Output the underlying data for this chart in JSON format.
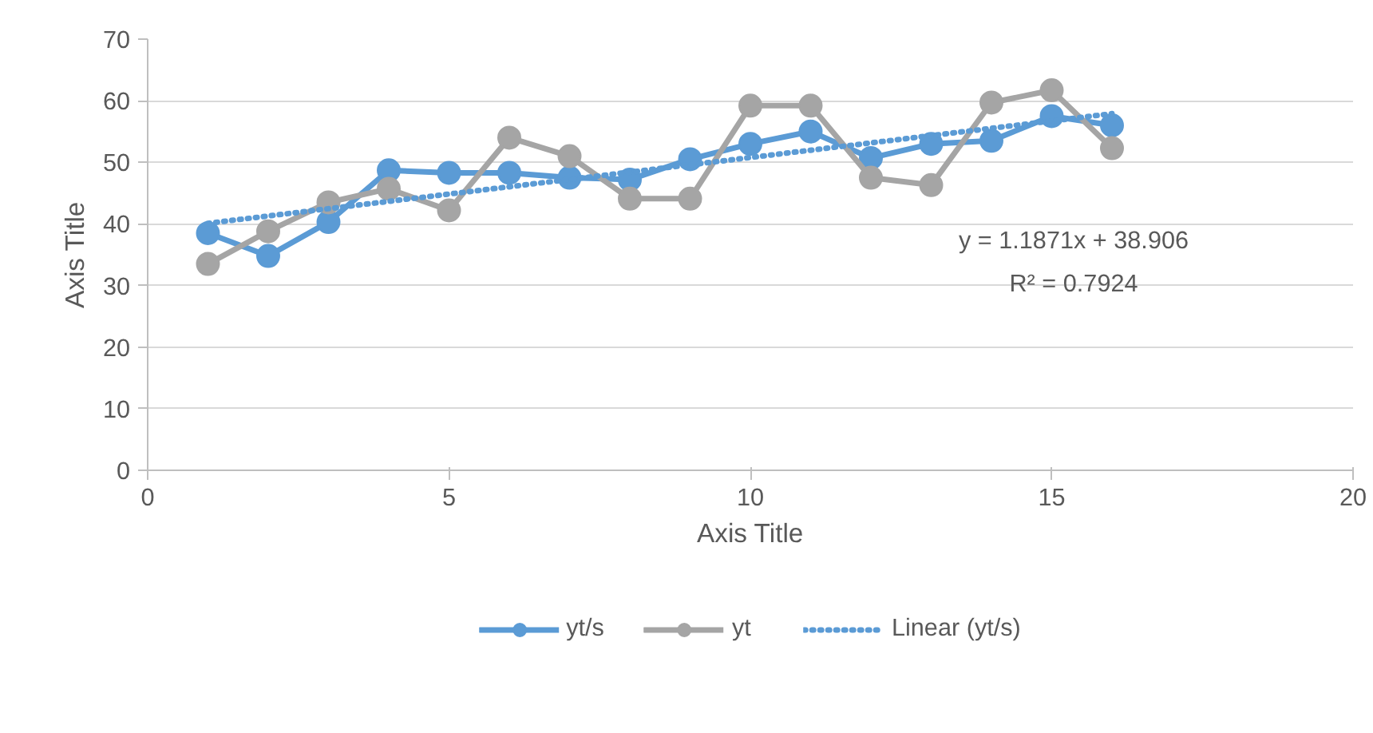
{
  "chart_data": {
    "type": "line",
    "xlabel": "Axis Title",
    "ylabel": "Axis Title",
    "x": [
      1,
      2,
      3,
      4,
      5,
      6,
      7,
      8,
      9,
      10,
      11,
      12,
      13,
      14,
      15,
      16
    ],
    "xlim": [
      0,
      20
    ],
    "xticks": [
      0,
      5,
      10,
      15,
      20
    ],
    "ylim": [
      0,
      70
    ],
    "yticks": [
      0,
      10,
      20,
      30,
      40,
      50,
      60,
      70
    ],
    "grid": "y",
    "legend": "bottom",
    "marker": "circle",
    "series": [
      {
        "name": "yt/s",
        "color": "#5b9bd5",
        "values": [
          38.5,
          34.8,
          40.3,
          48.7,
          48.3,
          48.3,
          47.5,
          47.2,
          50.5,
          53.0,
          55.0,
          50.7,
          53.0,
          53.5,
          57.5,
          56.0
        ]
      },
      {
        "name": "yt",
        "color": "#a5a5a5",
        "values": [
          33.5,
          38.8,
          43.5,
          45.7,
          42.2,
          54.0,
          51.0,
          44.1,
          44.1,
          59.2,
          59.2,
          47.5,
          46.3,
          59.7,
          61.7,
          52.3
        ]
      },
      {
        "name": "Linear (yt/s)",
        "color": "#5b9bd5",
        "x": [
          1,
          16
        ],
        "values": [
          40.1,
          57.9
        ],
        "marker": "none",
        "line_style": "dotted"
      }
    ],
    "annotations": [
      "y = 1.1871x + 38.906",
      "R² = 0.7924"
    ]
  }
}
